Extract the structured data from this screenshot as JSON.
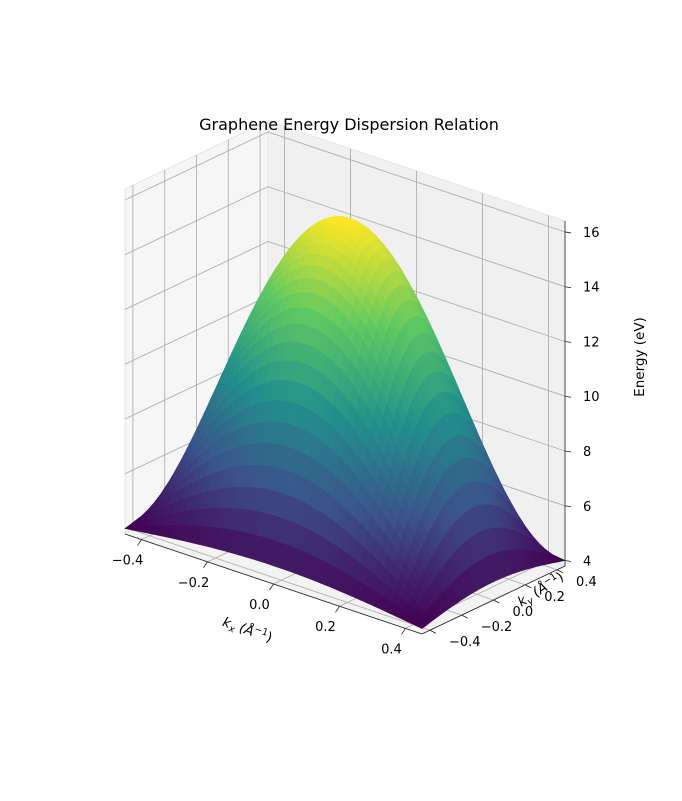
{
  "chart_data": {
    "type": "surface",
    "title": "Graphene Energy Dispersion Relation",
    "xlabel": "k",
    "xlabel_sub": "x",
    "xlabel_unit": " (Å",
    "xlabel_sup": "−1",
    "xlabel_close": ")",
    "ylabel": "k",
    "ylabel_sub": "y",
    "ylabel_unit": " (Å",
    "ylabel_sup": "−1",
    "ylabel_close": ")",
    "zlabel": "Energy (eV)",
    "xlim": [
      -0.45,
      0.45
    ],
    "ylim": [
      -0.45,
      0.45
    ],
    "zlim": [
      3.8,
      16.4
    ],
    "x_ticks": [
      -0.4,
      -0.2,
      0.0,
      0.2,
      0.4
    ],
    "x_tick_labels": [
      "−0.4",
      "−0.2",
      "0.0",
      "0.2",
      "0.4"
    ],
    "y_ticks": [
      -0.4,
      -0.2,
      0.0,
      0.2,
      0.4
    ],
    "y_tick_labels": [
      "−0.4",
      "−0.2",
      "0.0",
      "0.2",
      "0.4"
    ],
    "z_ticks": [
      4,
      6,
      8,
      10,
      12,
      14,
      16
    ],
    "z_tick_labels": [
      "4",
      "6",
      "8",
      "10",
      "12",
      "14",
      "16"
    ],
    "surface": {
      "x_range": [
        -0.45,
        0.45
      ],
      "y_range": [
        -0.45,
        0.45
      ],
      "peak_energy": 15.9,
      "min_energy": 4.0,
      "peak_at": [
        0.0,
        0.0
      ],
      "colormap": "viridis"
    },
    "grid": true,
    "colors": {
      "pane": "#f2f2f2",
      "grid": "#b0b0b0",
      "viridis": [
        "#440154",
        "#3b528b",
        "#21918c",
        "#5ec962",
        "#fde725"
      ]
    }
  }
}
